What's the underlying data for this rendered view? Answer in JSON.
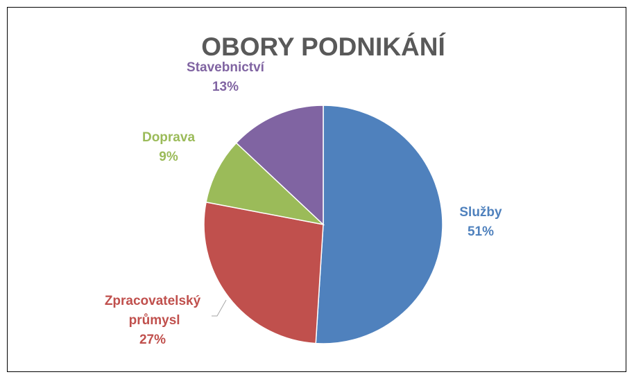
{
  "chart_data": {
    "type": "pie",
    "title": "OBORY PODNIKÁNÍ",
    "categories": [
      "Služby",
      "Zpracovatelský průmysl",
      "Doprava",
      "Stavebnictví"
    ],
    "values": [
      51,
      27,
      9,
      13
    ],
    "value_labels": [
      "51%",
      "27%",
      "9%",
      "13%"
    ],
    "colors": [
      "#4f81bd",
      "#c0504d",
      "#9bbb59",
      "#8064a2"
    ]
  }
}
